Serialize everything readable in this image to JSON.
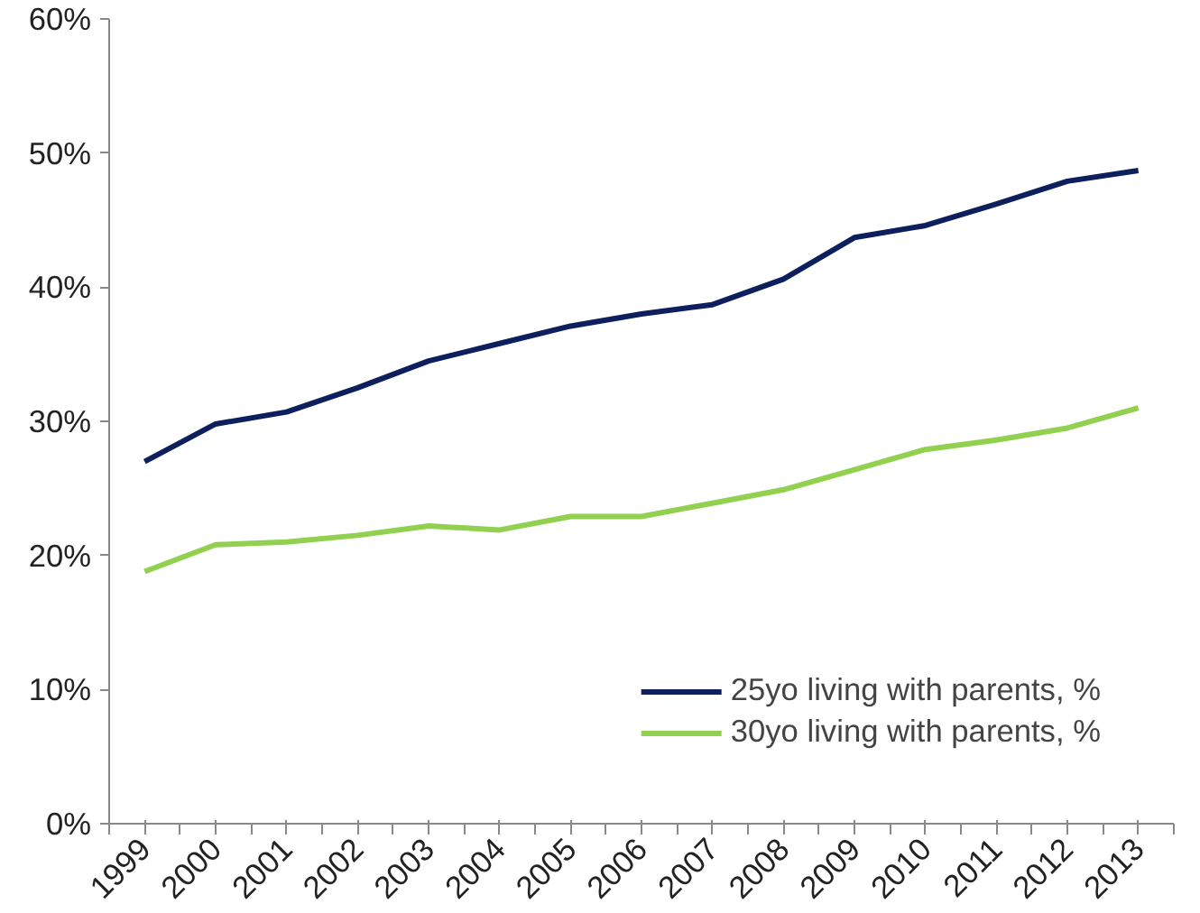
{
  "chart_data": {
    "type": "line",
    "categories": [
      "1999",
      "2000",
      "2001",
      "2002",
      "2003",
      "2004",
      "2005",
      "2006",
      "2007",
      "2008",
      "2009",
      "2010",
      "2011",
      "2012",
      "2013"
    ],
    "series": [
      {
        "name": "25yo living with parents, %",
        "color": "#0d1f5c",
        "values": [
          27.0,
          29.8,
          30.7,
          32.5,
          34.5,
          35.8,
          37.1,
          38.0,
          38.7,
          40.6,
          43.7,
          44.6,
          46.2,
          47.9,
          48.7
        ]
      },
      {
        "name": "30yo living with parents, %",
        "color": "#92d050",
        "values": [
          18.8,
          20.8,
          21.0,
          21.5,
          22.2,
          21.9,
          22.9,
          22.9,
          23.9,
          24.9,
          26.4,
          27.9,
          28.6,
          29.5,
          31.0
        ]
      }
    ],
    "ylim": [
      0,
      60
    ],
    "yticks": [
      {
        "value": 0,
        "label": "0%"
      },
      {
        "value": 10,
        "label": "10%"
      },
      {
        "value": 20,
        "label": "20%"
      },
      {
        "value": 30,
        "label": "30%"
      },
      {
        "value": 40,
        "label": "40%"
      },
      {
        "value": 50,
        "label": "50%"
      },
      {
        "value": 60,
        "label": "60%"
      }
    ],
    "grid": false,
    "legend": "bottom right",
    "marker": "none",
    "line_style": "solid"
  }
}
